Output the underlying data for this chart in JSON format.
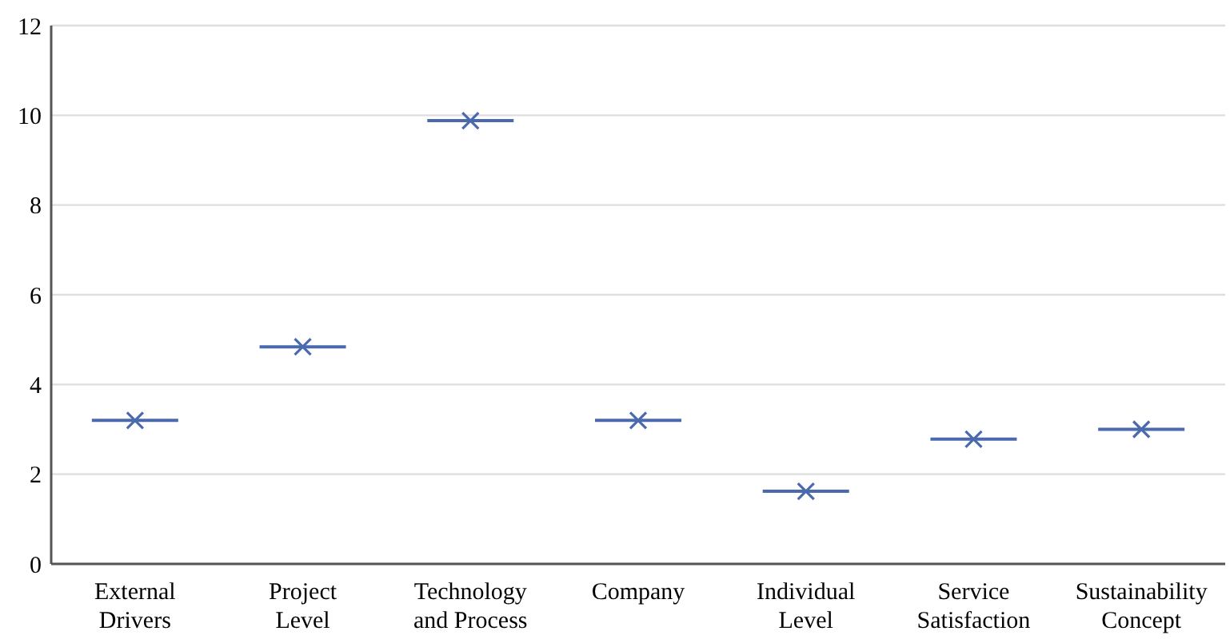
{
  "chart_data": {
    "type": "box",
    "categories": [
      "External Drivers",
      "Project Level",
      "Technology and Process",
      "Company",
      "Individual Level",
      "Service Satisfaction",
      "Sustainability Concept"
    ],
    "boxes": [
      {
        "low": 3.2,
        "q1": 3.2,
        "median": 3.2,
        "q3": 3.2,
        "high": 3.2,
        "mean": 3.2
      },
      {
        "low": 4.84,
        "q1": 4.84,
        "median": 4.84,
        "q3": 4.84,
        "high": 4.84,
        "mean": 4.84
      },
      {
        "low": 9.88,
        "q1": 9.88,
        "median": 9.88,
        "q3": 9.88,
        "high": 9.88,
        "mean": 9.88
      },
      {
        "low": 3.2,
        "q1": 3.2,
        "median": 3.2,
        "q3": 3.2,
        "high": 3.2,
        "mean": 3.2
      },
      {
        "low": 1.62,
        "q1": 1.62,
        "median": 1.62,
        "q3": 1.62,
        "high": 1.62,
        "mean": 1.62
      },
      {
        "low": 2.78,
        "q1": 2.78,
        "median": 2.78,
        "q3": 2.78,
        "high": 2.78,
        "mean": 2.78
      },
      {
        "low": 3.0,
        "q1": 3.0,
        "median": 3.0,
        "q3": 3.0,
        "high": 3.0,
        "mean": 3.0
      }
    ],
    "color": "#4a6aad",
    "marker": "cross",
    "ylim": [
      0,
      12
    ],
    "yticks": [
      0,
      2,
      4,
      6,
      8,
      10,
      12
    ],
    "grid": "y"
  }
}
